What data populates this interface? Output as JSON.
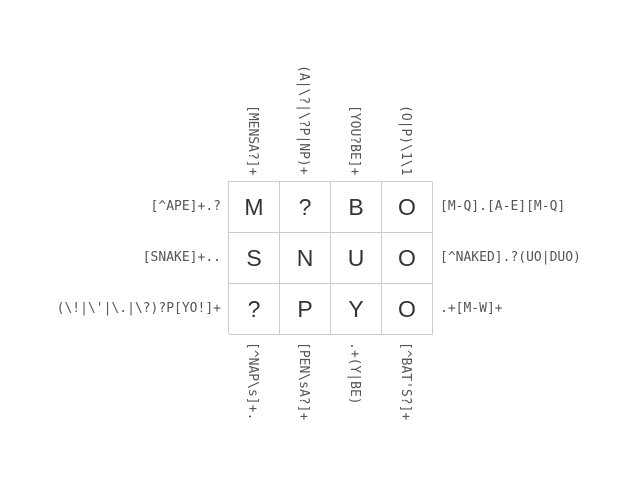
{
  "grid": {
    "rows": [
      [
        "M",
        "?",
        "B",
        "O"
      ],
      [
        "S",
        "N",
        "U",
        "O"
      ],
      [
        "?",
        "P",
        "Y",
        "O"
      ]
    ]
  },
  "clues": {
    "left": [
      "[^APE]+.?",
      "[SNAKE]+..",
      "(\\!|\\'|\\.|\\?)?P[YO!]+"
    ],
    "right": [
      "[M-Q].[A-E][M-Q]",
      "[^NAKED].?(UO|DUO)",
      ".+[M-W]+"
    ],
    "top": [
      "[MENSA?]+",
      "(A|\\?|\\?P|NP)+",
      "[YOU?BE]+",
      "(O|P)\\1\\1"
    ],
    "bottom": [
      "[^NAP\\s]+.",
      "[PEN\\sA?]+",
      ".+(Y|BE)",
      "[^BAT'S?]+"
    ]
  }
}
